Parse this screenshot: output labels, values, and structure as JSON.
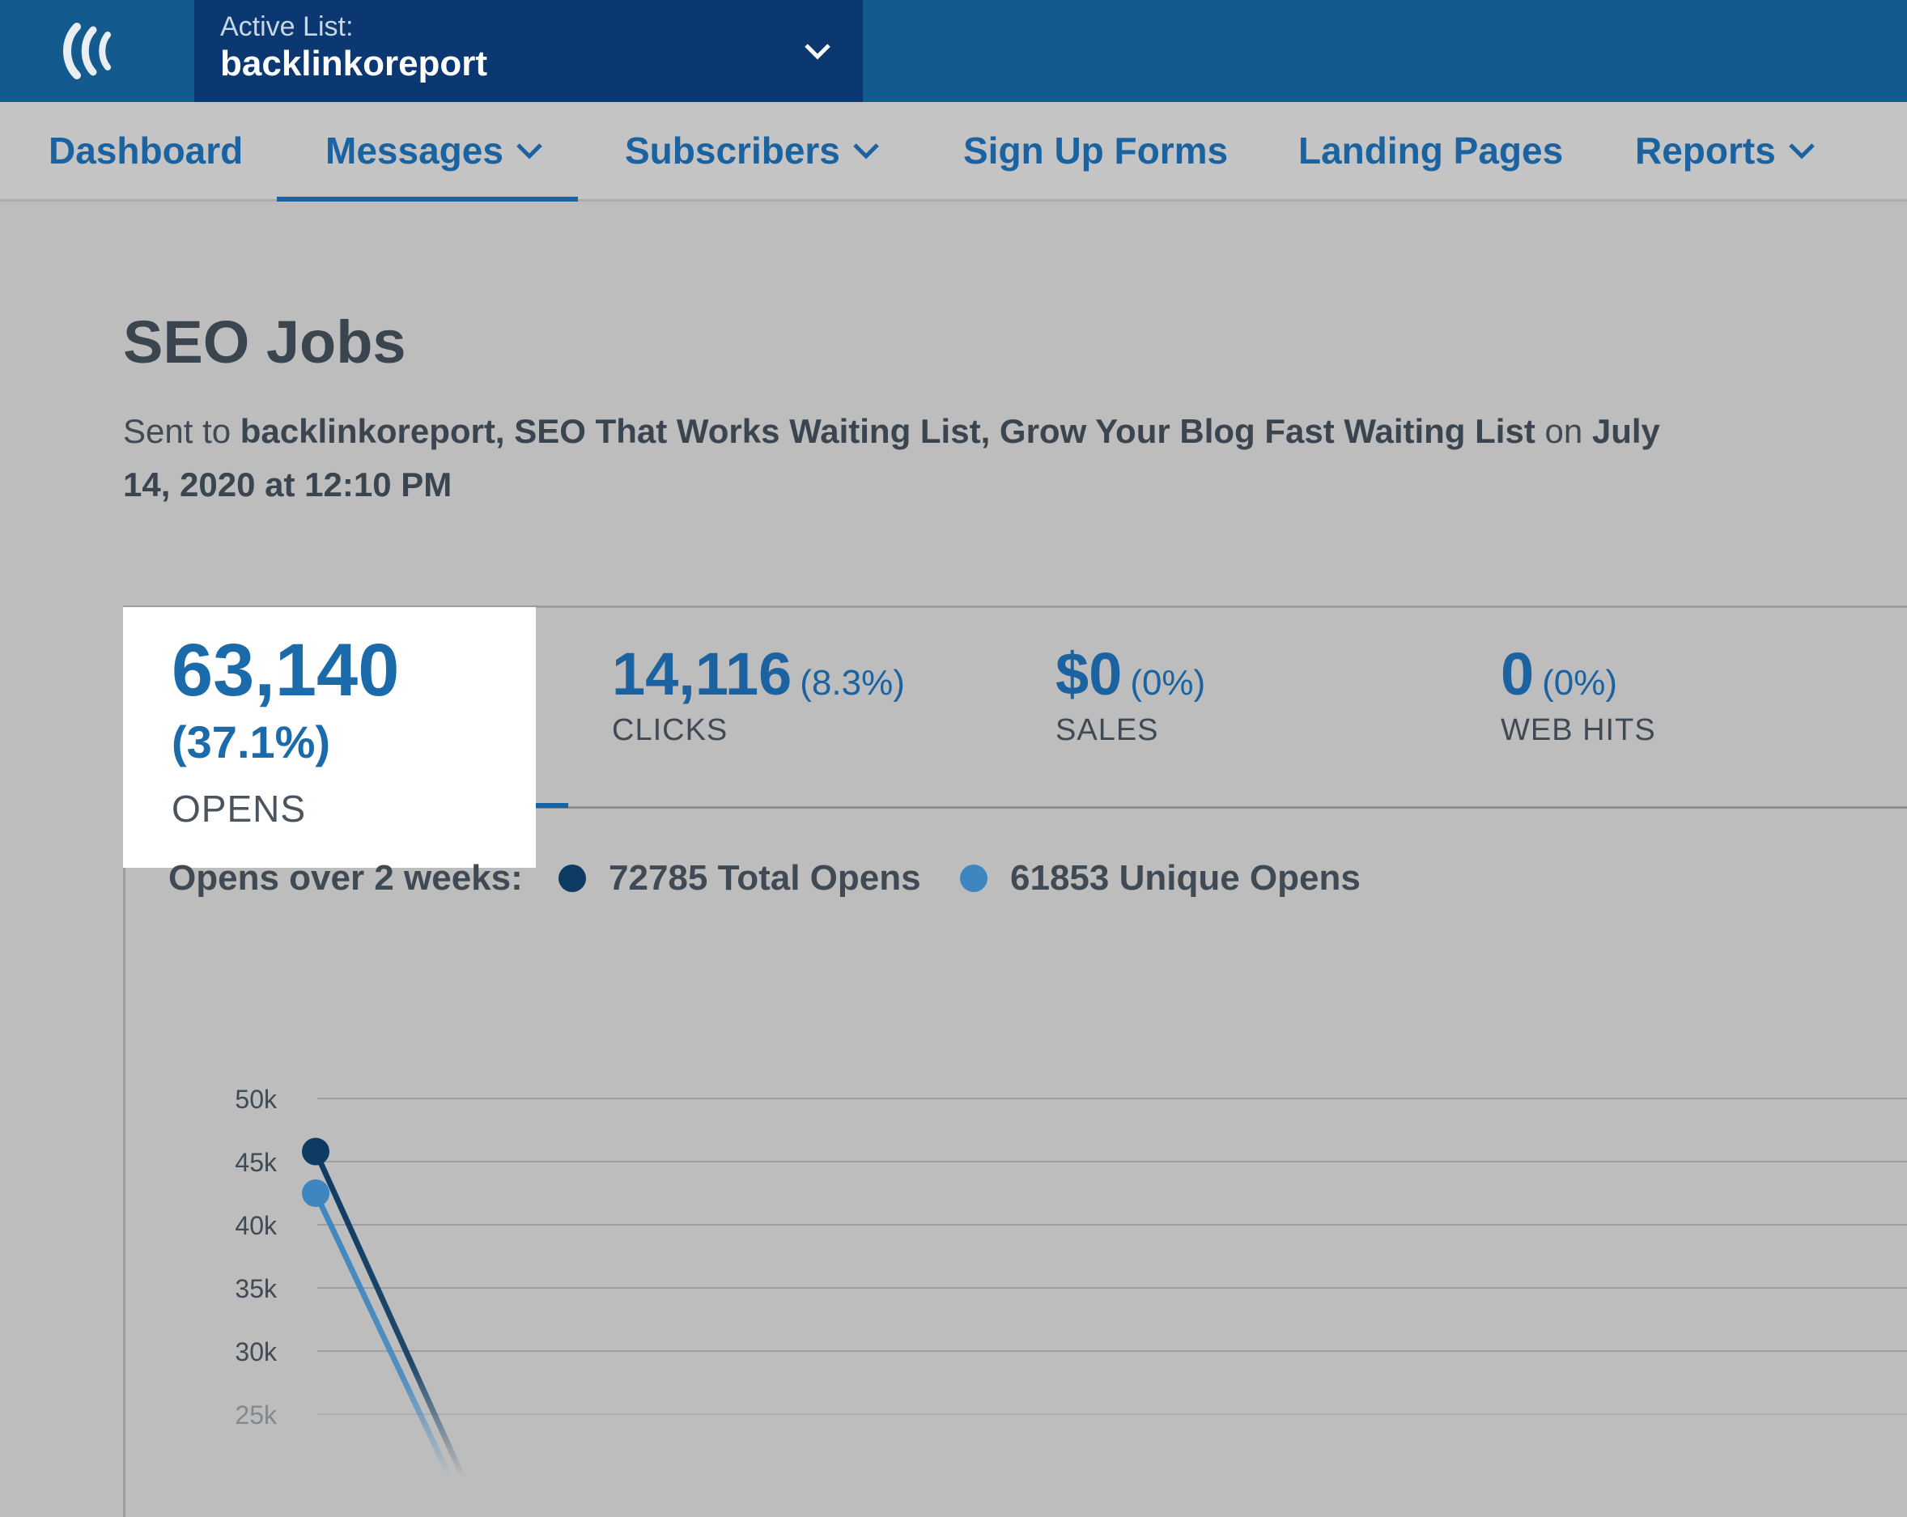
{
  "header": {
    "active_list_label": "Active List:",
    "active_list_value": "backlinkoreport",
    "logo_icon": "aweber-logo-icon",
    "dropdown_icon": "chevron-down-icon"
  },
  "nav": {
    "items": [
      {
        "label": "Dashboard",
        "has_dropdown": false
      },
      {
        "label": "Messages",
        "has_dropdown": true,
        "active": true
      },
      {
        "label": "Subscribers",
        "has_dropdown": true
      },
      {
        "label": "Sign Up Forms",
        "has_dropdown": false
      },
      {
        "label": "Landing Pages",
        "has_dropdown": false
      },
      {
        "label": "Reports",
        "has_dropdown": true
      }
    ]
  },
  "message": {
    "title": "SEO Jobs",
    "sent_prefix": "Sent to",
    "sent_lists": "backlinkoreport, SEO That Works Waiting List, Grow Your Blog Fast Waiting List",
    "on_word": "on",
    "sent_date": "July 14, 2020 at 12:10 PM"
  },
  "stats": {
    "opens": {
      "value": "63,140",
      "pct": "(37.1%)",
      "label": "OPENS"
    },
    "clicks": {
      "value": "14,116",
      "pct": "(8.3%)",
      "label": "CLICKS"
    },
    "sales": {
      "value": "$0",
      "pct": "(0%)",
      "label": "SALES"
    },
    "web_hits": {
      "value": "0",
      "pct": "(0%)",
      "label": "WEB HITS"
    }
  },
  "legend": {
    "title": "Opens over 2 weeks:",
    "total": "72785 Total Opens",
    "unique": "61853 Unique Opens"
  },
  "colors": {
    "total": "#0d3b62",
    "unique": "#3e86bf",
    "accent": "#1b63a0"
  },
  "chart_data": {
    "type": "line",
    "yticks": [
      "50k",
      "45k",
      "40k",
      "35k",
      "30k",
      "25k"
    ],
    "ylim": [
      25000,
      50000
    ],
    "grid": true,
    "series": [
      {
        "name": "Total Opens",
        "values": [
          45800,
          20000
        ]
      },
      {
        "name": "Unique Opens",
        "values": [
          42500,
          20000
        ]
      }
    ]
  }
}
